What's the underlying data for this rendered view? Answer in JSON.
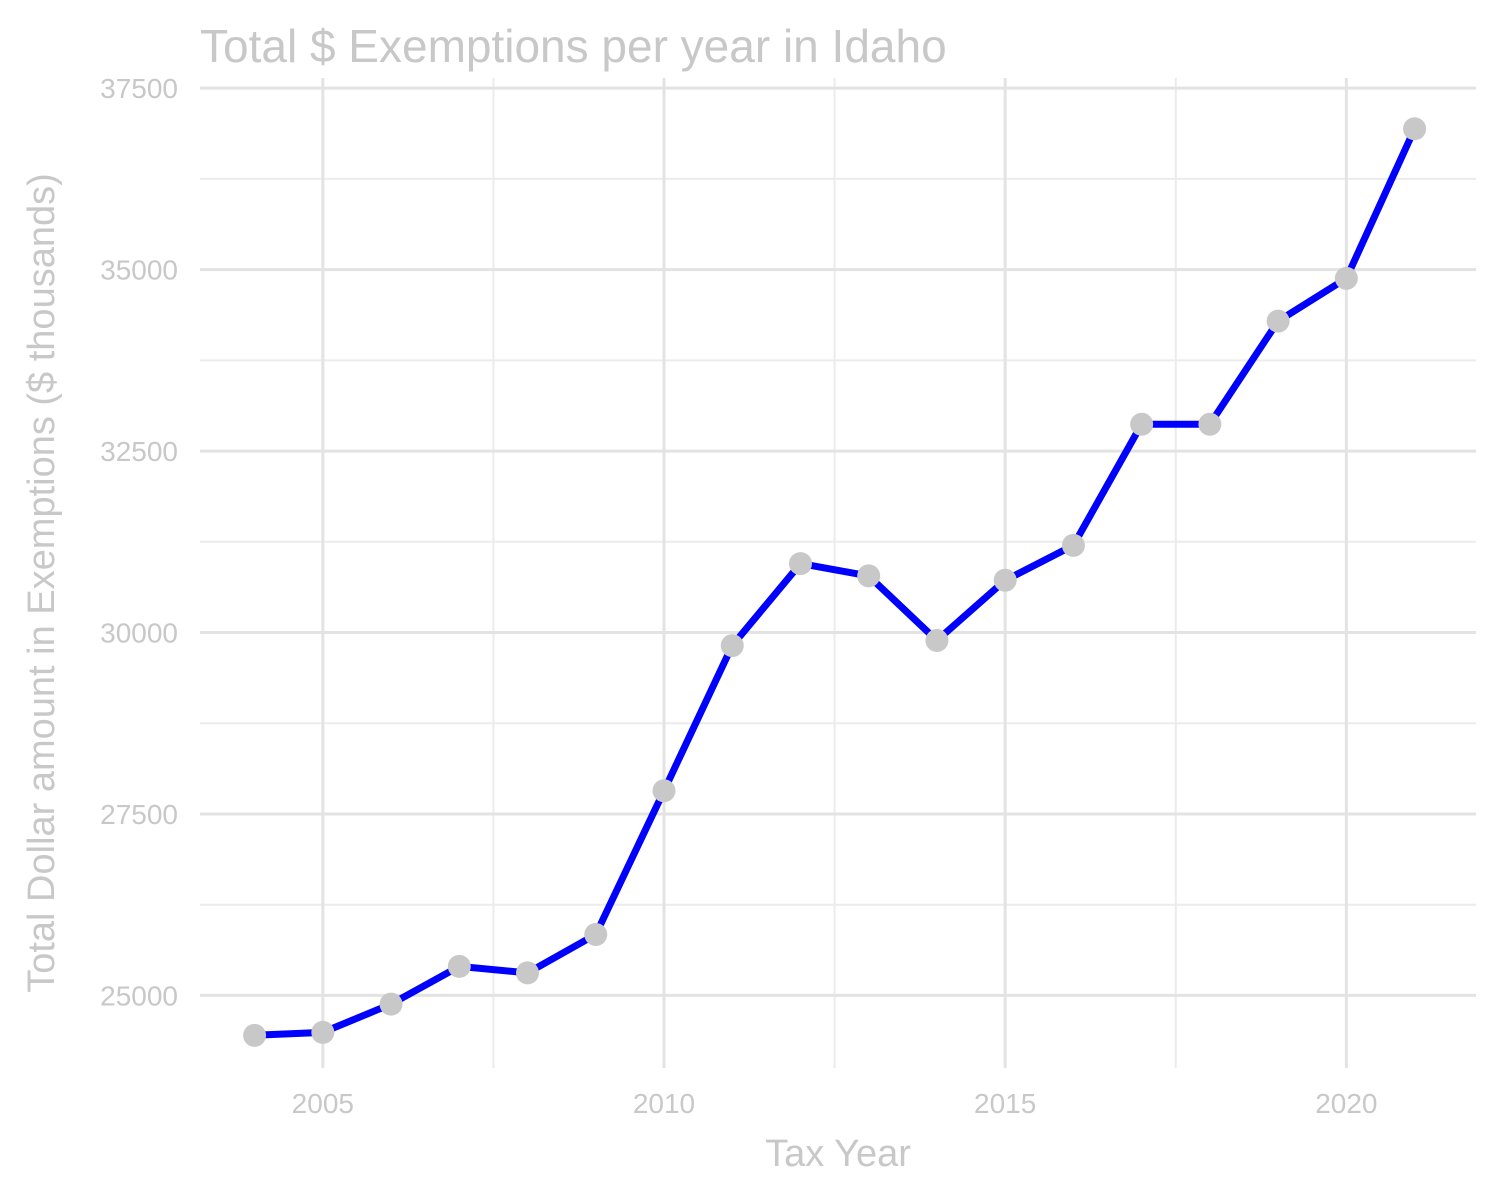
{
  "chart_data": {
    "type": "line",
    "title": "Total $ Exemptions per year in Idaho",
    "xlabel": "Tax Year",
    "ylabel": "Total Dollar amount in Exemptions ($ thousands)",
    "xlim": [
      2003.2,
      2021.9
    ],
    "ylim": [
      24000,
      37640
    ],
    "x_ticks": [
      2005,
      2010,
      2015,
      2020
    ],
    "x_tick_labels": [
      "2005",
      "2010",
      "2015",
      "2020"
    ],
    "x_minor_ticks": [
      2007.5,
      2012.5,
      2017.5
    ],
    "y_ticks": [
      25000,
      27500,
      30000,
      32500,
      35000,
      37500
    ],
    "y_tick_labels": [
      "25000",
      "27500",
      "30000",
      "32500",
      "35000",
      "37500"
    ],
    "y_minor_ticks": [
      26250,
      28750,
      31250,
      33750,
      36250
    ],
    "grid": true,
    "legend": "none",
    "line_color": "#0000ff",
    "point_color": "#c8c8c8",
    "series": [
      {
        "x": [
          2004,
          2005,
          2006,
          2007,
          2008,
          2009,
          2010,
          2011,
          2012,
          2013,
          2014,
          2015,
          2016,
          2017,
          2018,
          2019,
          2020,
          2021
        ],
        "y": [
          24450,
          24490,
          24880,
          25400,
          25310,
          25840,
          27820,
          29820,
          30950,
          30780,
          29890,
          30720,
          31200,
          32870,
          32870,
          34290,
          34880,
          36940
        ]
      }
    ]
  }
}
